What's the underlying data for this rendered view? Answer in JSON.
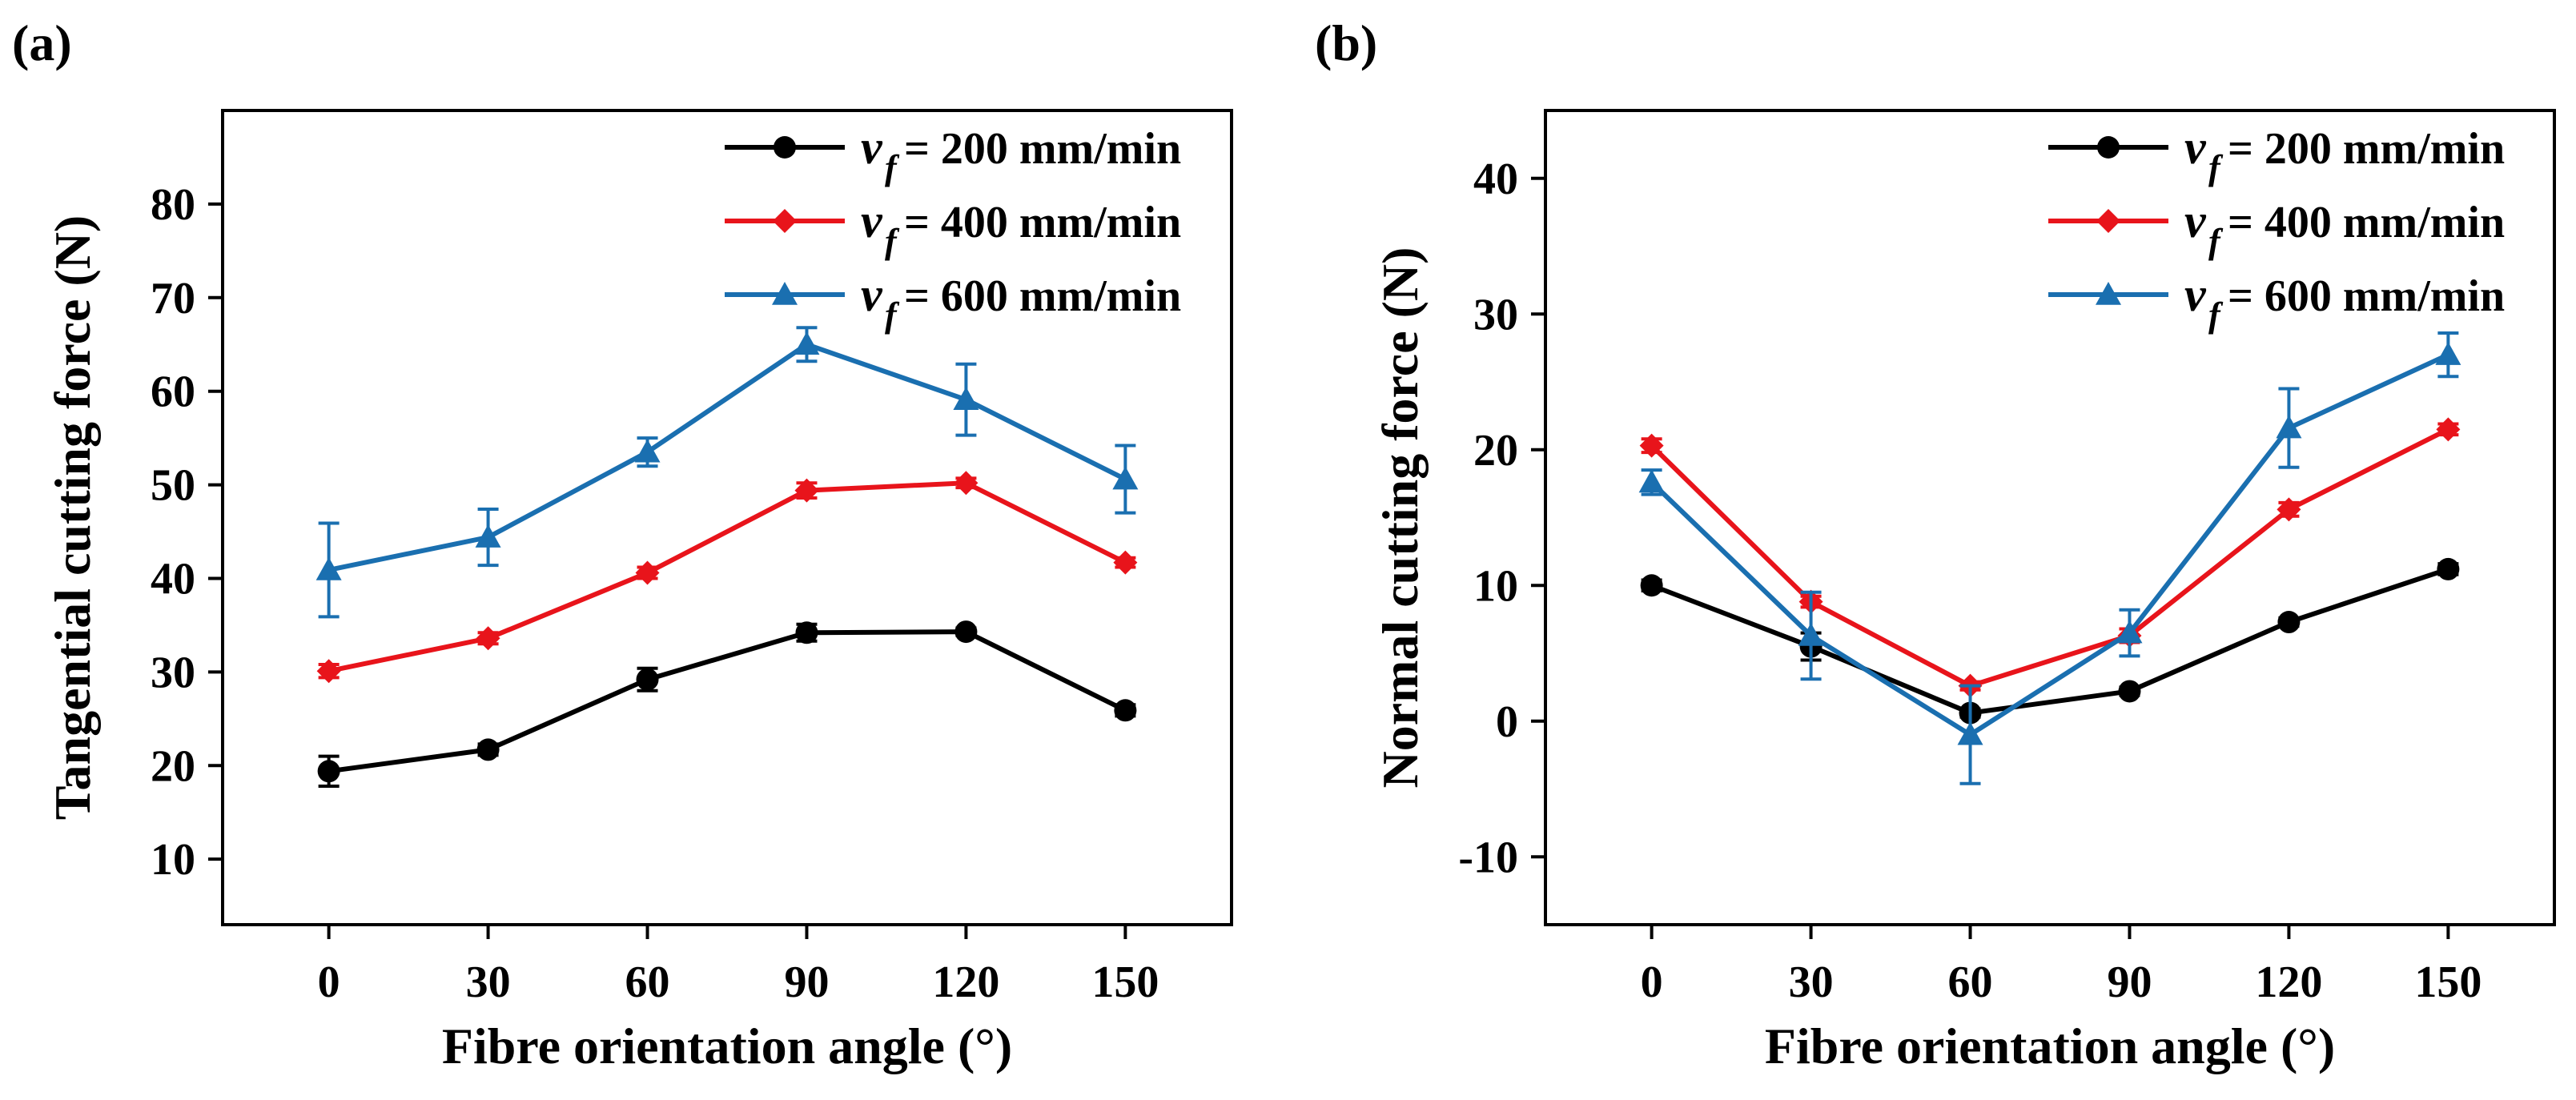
{
  "chart_data": [
    {
      "type": "line",
      "panel_label": "(a)",
      "xlabel": "Fibre orientation angle (°)",
      "ylabel": "Tangential cutting force (N)",
      "x": [
        0,
        30,
        60,
        90,
        120,
        150
      ],
      "x_ticks": [
        "0",
        "30",
        "60",
        "90",
        "120",
        "150"
      ],
      "xlim": [
        -20,
        170
      ],
      "ylim": [
        3,
        90
      ],
      "y_ticks": [
        "10",
        "20",
        "30",
        "40",
        "50",
        "60",
        "70",
        "80"
      ],
      "grid": false,
      "legend_position": "top-right",
      "series": [
        {
          "name": "v",
          "subscript": "f",
          "suffix": "= 200 mm/min",
          "marker": "circle",
          "color": "#000000",
          "values": [
            19.4,
            21.7,
            29.2,
            34.2,
            34.3,
            25.9
          ],
          "errors": [
            1.6,
            0.6,
            1.2,
            0.9,
            0.4,
            0.6
          ]
        },
        {
          "name": "v",
          "subscript": "f",
          "suffix": "= 400 mm/min",
          "marker": "diamond",
          "color": "#e8141b",
          "values": [
            30.1,
            33.6,
            40.6,
            49.4,
            50.2,
            41.7
          ],
          "errors": [
            0.7,
            0.6,
            0.6,
            0.8,
            0.5,
            0.5
          ]
        },
        {
          "name": "v",
          "subscript": "f",
          "suffix": "= 600 mm/min",
          "marker": "triangle",
          "color": "#1a6fb0",
          "values": [
            40.9,
            44.4,
            53.5,
            65.0,
            59.1,
            50.6
          ],
          "errors": [
            5.0,
            3.0,
            1.5,
            1.8,
            3.8,
            3.6
          ]
        }
      ]
    },
    {
      "type": "line",
      "panel_label": "(b)",
      "xlabel": "Fibre orientation angle (°)",
      "ylabel": "Normal cutting force (N)",
      "x": [
        0,
        30,
        60,
        90,
        120,
        150
      ],
      "x_ticks": [
        "0",
        "30",
        "60",
        "90",
        "120",
        "150"
      ],
      "xlim": [
        -20,
        170
      ],
      "ylim": [
        -15,
        45
      ],
      "y_ticks": [
        "-10",
        "0",
        "10",
        "20",
        "30",
        "40"
      ],
      "grid": false,
      "legend_position": "top-right",
      "series": [
        {
          "name": "v",
          "subscript": "f",
          "suffix": "= 200 mm/min",
          "marker": "circle",
          "color": "#000000",
          "values": [
            10.0,
            5.5,
            0.6,
            2.2,
            7.3,
            11.2
          ],
          "errors": [
            0.4,
            1.0,
            0.3,
            0.3,
            0.3,
            0.4
          ]
        },
        {
          "name": "v",
          "subscript": "f",
          "suffix": "= 400 mm/min",
          "marker": "diamond",
          "color": "#e8141b",
          "values": [
            20.3,
            8.8,
            2.6,
            6.3,
            15.6,
            21.5
          ],
          "errors": [
            0.5,
            0.4,
            0.3,
            0.5,
            0.5,
            0.4
          ]
        },
        {
          "name": "v",
          "subscript": "f",
          "suffix": "= 600 mm/min",
          "marker": "triangle",
          "color": "#1a6fb0",
          "values": [
            17.6,
            6.3,
            -1.0,
            6.5,
            21.6,
            27.0
          ],
          "errors": [
            0.9,
            3.2,
            3.6,
            1.7,
            2.9,
            1.6
          ]
        }
      ]
    }
  ]
}
